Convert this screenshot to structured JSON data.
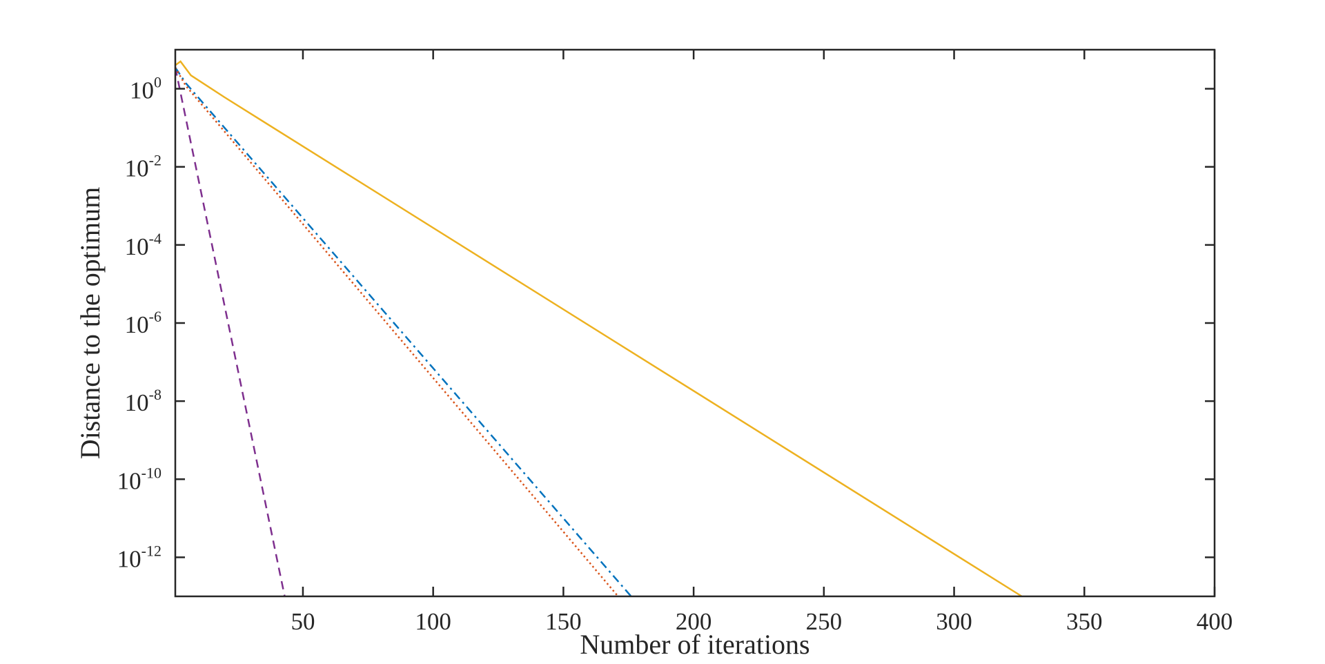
{
  "chart_data": {
    "type": "line",
    "title": "",
    "xlabel": "Number of iterations",
    "ylabel": "Distance to the optimum",
    "xlim": [
      1,
      400
    ],
    "ylim": [
      1e-13,
      10
    ],
    "y_scale": "log",
    "grid": false,
    "legend": "none",
    "x_ticks": [
      50,
      100,
      150,
      200,
      250,
      300,
      350,
      400
    ],
    "y_ticks": [
      {
        "value": 1,
        "base": "10",
        "exponent": "0"
      },
      {
        "value": 0.01,
        "base": "10",
        "exponent": "-2"
      },
      {
        "value": 0.0001,
        "base": "10",
        "exponent": "-4"
      },
      {
        "value": 1e-06,
        "base": "10",
        "exponent": "-6"
      },
      {
        "value": 1e-08,
        "base": "10",
        "exponent": "-8"
      },
      {
        "value": 1e-10,
        "base": "10",
        "exponent": "-10"
      },
      {
        "value": 1e-12,
        "base": "10",
        "exponent": "-12"
      }
    ],
    "series": [
      {
        "color": "#7E2F8E",
        "dash": "dashed",
        "points": [
          [
            1,
            3.5
          ],
          [
            43,
            1e-13
          ]
        ]
      },
      {
        "color": "#0072BD",
        "dash": "dashdot",
        "points": [
          [
            1,
            3.5
          ],
          [
            5,
            1.4
          ],
          [
            176,
            1e-13
          ]
        ]
      },
      {
        "color": "#D95319",
        "dash": "dotted",
        "points": [
          [
            1,
            3.5
          ],
          [
            5,
            1.2
          ],
          [
            171,
            1e-13
          ]
        ]
      },
      {
        "color": "#EDB120",
        "dash": "solid",
        "points": [
          [
            1,
            4.0
          ],
          [
            3,
            5.0
          ],
          [
            7,
            2.2
          ],
          [
            20,
            0.6
          ],
          [
            326,
            1e-13
          ]
        ]
      }
    ]
  }
}
